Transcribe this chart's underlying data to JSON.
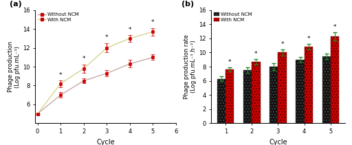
{
  "panel_a": {
    "title": "(a)",
    "cycles": [
      0,
      1,
      2,
      3,
      4,
      5
    ],
    "without_ncm_y": [
      5.0,
      7.0,
      8.5,
      9.3,
      10.3,
      11.0
    ],
    "without_ncm_err": [
      0.0,
      0.3,
      0.25,
      0.35,
      0.4,
      0.3
    ],
    "with_ncm_y": [
      5.0,
      8.2,
      9.8,
      12.0,
      13.0,
      13.7
    ],
    "with_ncm_err": [
      0.0,
      0.35,
      0.45,
      0.5,
      0.35,
      0.4
    ],
    "star_cycles": [
      1,
      2,
      3,
      4,
      5
    ],
    "xlabel": "Cycle",
    "ylabel": "Phage production\n(Log pfu.mL⁻¹)",
    "ylim": [
      4,
      16
    ],
    "yticks": [
      6,
      8,
      10,
      12,
      14,
      16
    ],
    "xlim": [
      -0.1,
      6
    ],
    "xticks": [
      0,
      1,
      2,
      3,
      4,
      5,
      6
    ],
    "line_color_without": "#c8a8a8",
    "line_color_with": "#d4d490",
    "marker_color": "#cc0000",
    "ecolor": "#cc0000",
    "legend_without": "Without NCM",
    "legend_with": "With NCM"
  },
  "panel_b": {
    "title": "(b)",
    "cycles": [
      1,
      2,
      3,
      4,
      5
    ],
    "without_ncm_y": [
      6.3,
      7.5,
      8.0,
      9.0,
      9.5
    ],
    "without_ncm_err": [
      0.3,
      0.4,
      0.5,
      0.35,
      0.4
    ],
    "with_ncm_y": [
      7.6,
      8.7,
      10.0,
      10.8,
      12.3
    ],
    "with_ncm_err": [
      0.3,
      0.4,
      0.4,
      0.4,
      0.6
    ],
    "star_cycles": [
      1,
      2,
      3,
      4,
      5
    ],
    "xlabel": "Cycle",
    "ylabel": "Phage production rate\n(Log pfu.mL⁻¹.h⁻¹)",
    "ylim": [
      0,
      16
    ],
    "yticks": [
      0,
      2,
      4,
      6,
      8,
      10,
      12,
      14,
      16
    ],
    "color_without": "#111111",
    "color_with": "#cc0000",
    "ecolor_without": "#228822",
    "ecolor_with": "#228822",
    "legend_without": "Without NCM",
    "legend_with": "With NCM",
    "bar_width": 0.32
  }
}
